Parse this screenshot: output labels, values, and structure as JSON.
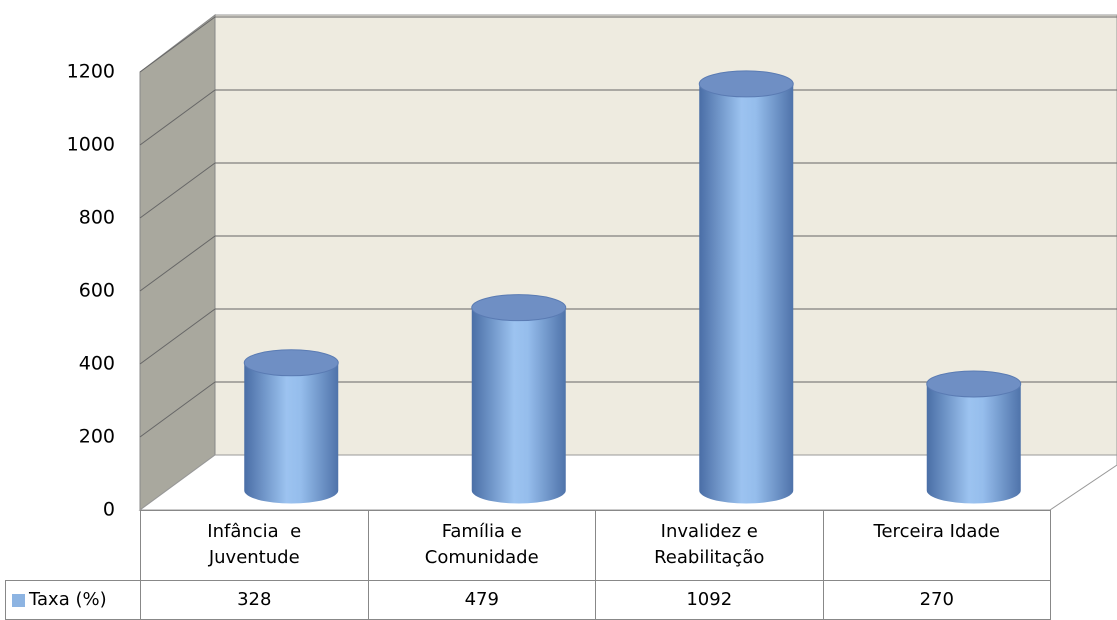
{
  "chart_data": {
    "type": "bar",
    "categories": [
      "Infância  e Juventude",
      "Família e Comunidade",
      "Invalidez e Reabilitação",
      "Terceira Idade"
    ],
    "series": [
      {
        "name": "Taxa (%)",
        "color": "#8db4e2",
        "values": [
          328,
          479,
          1092,
          270
        ]
      }
    ],
    "ylim": [
      0,
      1200
    ],
    "yticks": [
      0,
      200,
      400,
      600,
      800,
      1000,
      1200
    ],
    "grid": true
  }
}
